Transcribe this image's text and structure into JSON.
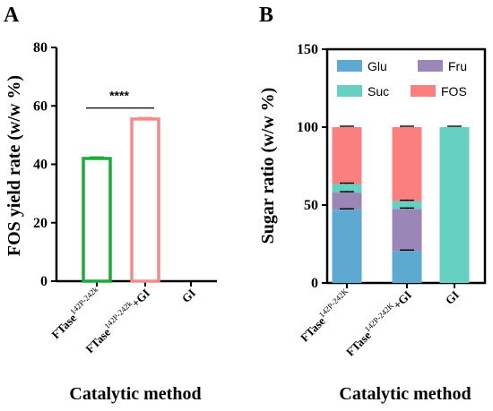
{
  "panels": {
    "a": {
      "letter": "A"
    },
    "b": {
      "letter": "B"
    }
  },
  "chart_data": [
    {
      "type": "bar",
      "panel": "A",
      "ylabel": "FOS yield rate (w/w %)",
      "xlabel": "Catalytic method",
      "ylim": [
        0,
        80
      ],
      "yticks": [
        0,
        20,
        40,
        60,
        80
      ],
      "categories": [
        {
          "main": "FTase",
          "sup": "142P-242k",
          "tail": ""
        },
        {
          "main": "FTase",
          "sup": "142P-242k",
          "tail": "+GI"
        },
        {
          "main": "GI",
          "sup": "",
          "tail": ""
        }
      ],
      "values": [
        42,
        55.5,
        0
      ],
      "errors": [
        0.5,
        0.5,
        0
      ],
      "colors": [
        "#1aab3a",
        "#f58a8a",
        "#000000"
      ],
      "style": "hollow",
      "significance": {
        "label": "****",
        "from": 0,
        "to": 1,
        "y": 60.5
      }
    },
    {
      "type": "bar",
      "stacked": true,
      "panel": "B",
      "ylabel": "Sugar ratio (w/w %)",
      "xlabel": "Catalytic method",
      "ylim": [
        0,
        150
      ],
      "yticks": [
        0,
        50,
        100,
        150
      ],
      "categories": [
        {
          "main": "FTase",
          "sup": "142P-242K",
          "tail": ""
        },
        {
          "main": "FTase",
          "sup": "142P-242K",
          "tail": "+GI"
        },
        {
          "main": "GI",
          "sup": "",
          "tail": ""
        }
      ],
      "series": [
        {
          "name": "Glu",
          "color": "#5ea9d1",
          "values": [
            47,
            20.5,
            0
          ],
          "errors": [
            0.4,
            0.4,
            0
          ]
        },
        {
          "name": "Fru",
          "color": "#9b86b8",
          "values": [
            11,
            27,
            0
          ],
          "errors": [
            0.5,
            0.5,
            0
          ]
        },
        {
          "name": "Suc",
          "color": "#66d1c1",
          "values": [
            5.5,
            5,
            100
          ],
          "errors": [
            0.4,
            0.5,
            0.3
          ]
        },
        {
          "name": "FOS",
          "color": "#fa8080",
          "values": [
            36.5,
            47.5,
            0
          ],
          "errors": [
            0.3,
            0.3,
            0
          ]
        }
      ],
      "legend": {
        "placement": "top",
        "order": [
          "Glu",
          "Fru",
          "Suc",
          "FOS"
        ]
      }
    }
  ]
}
